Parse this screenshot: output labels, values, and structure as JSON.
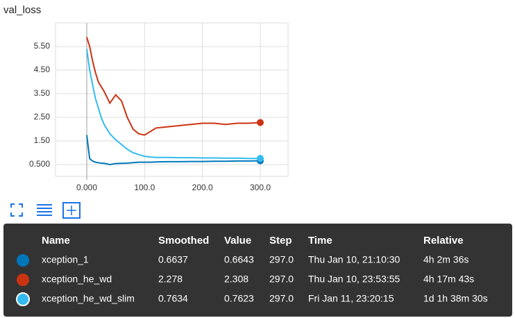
{
  "chart_data": {
    "type": "line",
    "title": "val_loss",
    "x": [
      0,
      5,
      10,
      15,
      20,
      25,
      30,
      40,
      50,
      60,
      70,
      80,
      90,
      100,
      110,
      120,
      140,
      160,
      180,
      200,
      220,
      240,
      260,
      280,
      300
    ],
    "series": [
      {
        "name": "xception_1",
        "color": "#0077bb",
        "values": [
          1.75,
          0.75,
          0.65,
          0.6,
          0.58,
          0.56,
          0.55,
          0.5,
          0.54,
          0.55,
          0.56,
          0.58,
          0.6,
          0.6,
          0.6,
          0.61,
          0.62,
          0.62,
          0.63,
          0.63,
          0.64,
          0.64,
          0.65,
          0.65,
          0.66
        ]
      },
      {
        "name": "xception_he_wd",
        "color": "#cc3311",
        "values": [
          5.9,
          5.5,
          4.9,
          4.4,
          4.0,
          3.8,
          3.6,
          3.1,
          3.45,
          3.2,
          2.5,
          2.0,
          1.8,
          1.75,
          1.9,
          2.05,
          2.1,
          2.15,
          2.2,
          2.25,
          2.25,
          2.2,
          2.25,
          2.25,
          2.28
        ]
      },
      {
        "name": "xception_he_wd_slim",
        "color": "#33bbee",
        "values": [
          5.4,
          4.5,
          3.9,
          3.3,
          2.9,
          2.5,
          2.2,
          1.8,
          1.55,
          1.35,
          1.15,
          1.0,
          0.92,
          0.85,
          0.82,
          0.8,
          0.8,
          0.79,
          0.79,
          0.78,
          0.78,
          0.77,
          0.77,
          0.76,
          0.76
        ]
      }
    ],
    "xlim": [
      -54,
      348
    ],
    "ylim": [
      0,
      6.5
    ],
    "xticks": [
      {
        "value": 0,
        "label": "0.000"
      },
      {
        "value": 100,
        "label": "100.0"
      },
      {
        "value": 200,
        "label": "200.0"
      },
      {
        "value": 300,
        "label": "300.0"
      }
    ],
    "yticks": [
      {
        "value": 0.5,
        "label": "0.500"
      },
      {
        "value": 1.5,
        "label": "1.50"
      },
      {
        "value": 2.5,
        "label": "2.50"
      },
      {
        "value": 3.5,
        "label": "3.50"
      },
      {
        "value": 4.5,
        "label": "4.50"
      },
      {
        "value": 5.5,
        "label": "5.50"
      }
    ],
    "grid": true
  },
  "tooltip": {
    "columns": [
      "Name",
      "Smoothed",
      "Value",
      "Step",
      "Time",
      "Relative"
    ],
    "rows": [
      [
        "xception_1",
        "0.6637",
        "0.6643",
        "297.0",
        "Thu Jan 10, 21:10:30",
        "4h 2m 36s"
      ],
      [
        "xception_he_wd",
        "2.278",
        "2.308",
        "297.0",
        "Thu Jan 10, 23:53:55",
        "4h 17m 43s"
      ],
      [
        "xception_he_wd_slim",
        "0.7634",
        "0.7623",
        "297.0",
        "Fri Jan 11, 23:20:15",
        "1d 1h 38m 30s"
      ]
    ]
  }
}
